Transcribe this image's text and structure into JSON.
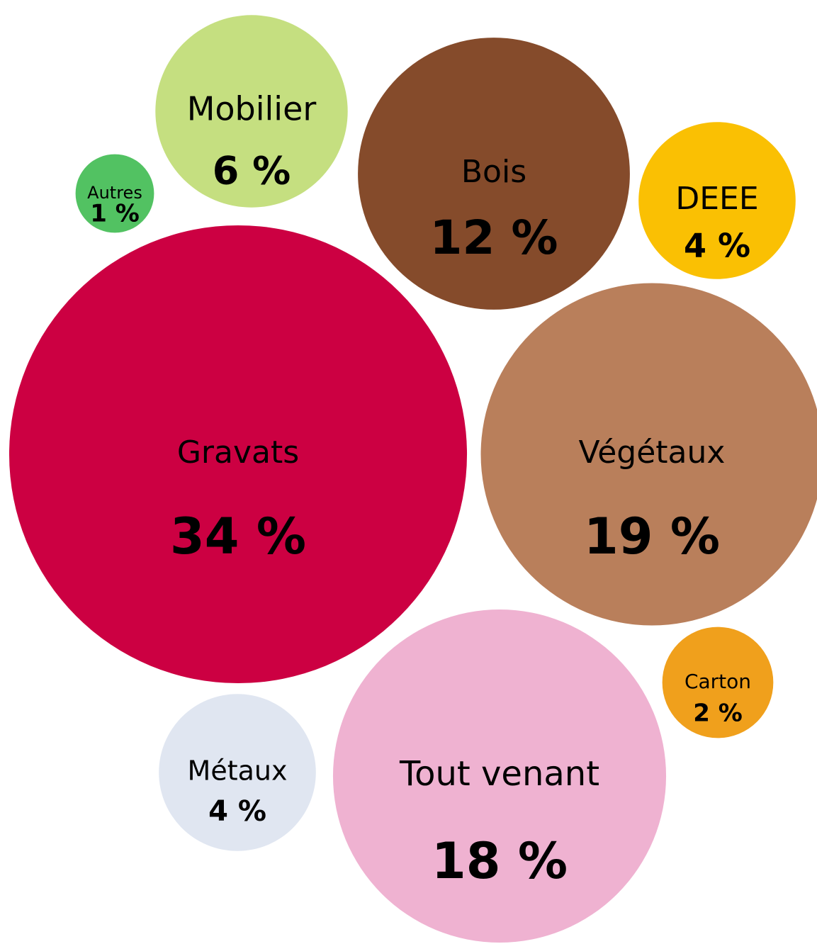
{
  "chart_data": {
    "type": "bubble",
    "categories": [
      "Mobilier",
      "Autres",
      "Bois",
      "DEEE",
      "Gravats",
      "Végétaux",
      "Carton",
      "Métaux",
      "Tout venant"
    ],
    "values": [
      6,
      1,
      12,
      4,
      34,
      19,
      2,
      4,
      18
    ],
    "value_labels": [
      "6 %",
      "1 %",
      "12 %",
      "4 %",
      "34 %",
      "19 %",
      "2 %",
      "4 %",
      "18 %"
    ],
    "colors": [
      "#c5df80",
      "#52c262",
      "#854b2b",
      "#fac003",
      "#cc0042",
      "#b97f5b",
      "#f0a01c",
      "#e0e6f1",
      "#efb2d1"
    ]
  }
}
